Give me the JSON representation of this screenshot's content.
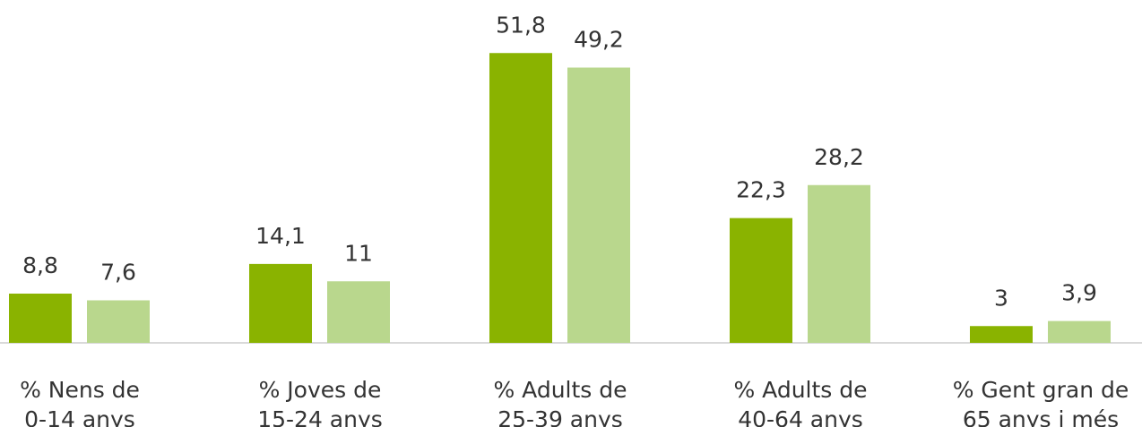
{
  "chart_data": {
    "type": "bar",
    "categories": [
      [
        "% Nens de",
        "0-14 anys"
      ],
      [
        "% Joves de",
        "15-24 anys"
      ],
      [
        "% Adults de",
        "25-39 anys"
      ],
      [
        "% Adults de",
        "40-64 anys"
      ],
      [
        "% Gent gran de",
        "65 anys i més"
      ]
    ],
    "series": [
      {
        "color": "#8ab300",
        "values": [
          8.8,
          14.1,
          51.8,
          22.3,
          3
        ],
        "value_labels": [
          "8,8",
          "14,1",
          "51,8",
          "22,3",
          "3"
        ]
      },
      {
        "color": "#b9d78d",
        "values": [
          7.6,
          11,
          49.2,
          28.2,
          3.9
        ],
        "value_labels": [
          "7,6",
          "11",
          "49,2",
          "28,2",
          "3,9"
        ]
      }
    ],
    "ylim": [
      0,
      60
    ]
  }
}
